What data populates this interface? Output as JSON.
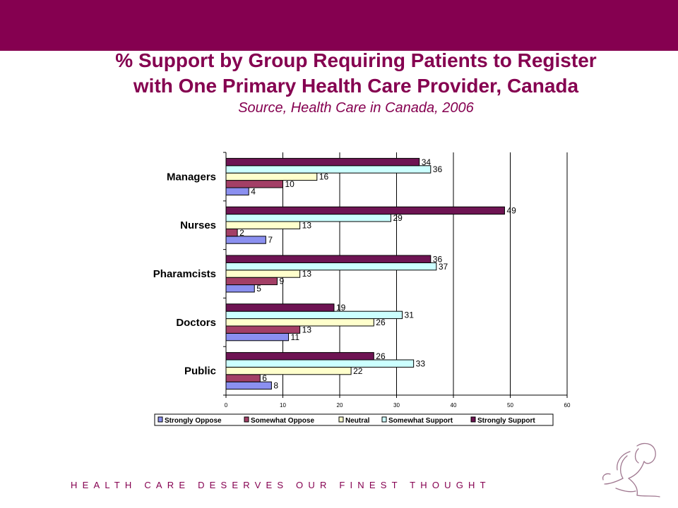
{
  "header": {
    "title_line1": "% Support by Group Requiring Patients to Register",
    "title_line2": "with One Primary Health Care Provider, Canada",
    "subtitle": "Source, Health Care in Canada, 2006"
  },
  "footer": {
    "tagline": "HEALTH CARE DESERVES OUR FINEST THOUGHT",
    "logo_icon": "mother-and-child-logo-icon"
  },
  "colors": {
    "brand": "#850050"
  },
  "chart_data": {
    "type": "bar",
    "orientation": "horizontal",
    "categories": [
      "Managers",
      "Nurses",
      "Pharamcists",
      "Doctors",
      "Public"
    ],
    "series": [
      {
        "name": "Strongly Oppose",
        "color": "#8B90F0",
        "values": [
          4,
          7,
          5,
          11,
          8
        ]
      },
      {
        "name": "Somewhat Oppose",
        "color": "#A33F66",
        "values": [
          10,
          2,
          9,
          13,
          6
        ]
      },
      {
        "name": "Neutral",
        "color": "#FFFFCC",
        "values": [
          16,
          13,
          13,
          26,
          22
        ]
      },
      {
        "name": "Somewhat Support",
        "color": "#CCFFFF",
        "values": [
          36,
          29,
          37,
          31,
          33
        ]
      },
      {
        "name": "Strongly Support",
        "color": "#6E1453",
        "values": [
          34,
          49,
          36,
          19,
          26
        ]
      }
    ],
    "xlim": [
      0,
      60
    ],
    "xticks": [
      0,
      10,
      20,
      30,
      40,
      50,
      60
    ],
    "grid": true,
    "legend_position": "bottom"
  }
}
